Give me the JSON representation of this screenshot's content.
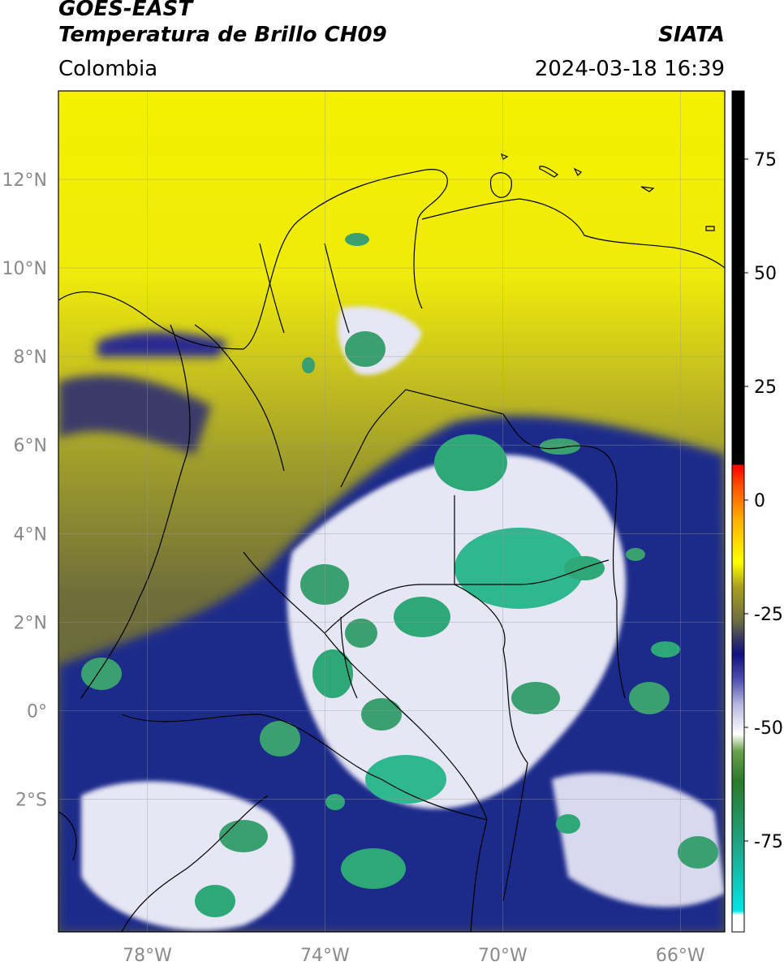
{
  "header": {
    "title_line1": "GOES-EAST",
    "title_line2": "Temperatura de Brillo CH09",
    "source": "SIATA",
    "region": "Colombia",
    "datetime": "2024-03-18 16:39"
  },
  "map": {
    "lon_range": [
      -80.0,
      -65.0
    ],
    "lat_range": [
      -5.0,
      14.0
    ],
    "lat_ticks": [
      {
        "lat": 12,
        "label": "12°N"
      },
      {
        "lat": 10,
        "label": "10°N"
      },
      {
        "lat": 8,
        "label": "8°N"
      },
      {
        "lat": 6,
        "label": "6°N"
      },
      {
        "lat": 4,
        "label": "4°N"
      },
      {
        "lat": 2,
        "label": "2°N"
      },
      {
        "lat": 0,
        "label": "0°"
      },
      {
        "lat": -2,
        "label": "2°S"
      }
    ],
    "lon_ticks": [
      {
        "lon": -78,
        "label": "78°W"
      },
      {
        "lon": -74,
        "label": "74°W"
      },
      {
        "lon": -70,
        "label": "70°W"
      },
      {
        "lon": -66,
        "label": "66°W"
      }
    ]
  },
  "colorbar": {
    "range": [
      -95,
      90
    ],
    "ticks": [
      {
        "value": 75,
        "label": "75"
      },
      {
        "value": 50,
        "label": "50"
      },
      {
        "value": 25,
        "label": "25"
      },
      {
        "value": 0,
        "label": "0"
      },
      {
        "value": -25,
        "label": "-25"
      },
      {
        "value": -50,
        "label": "-50"
      },
      {
        "value": -75,
        "label": "-75"
      }
    ]
  }
}
